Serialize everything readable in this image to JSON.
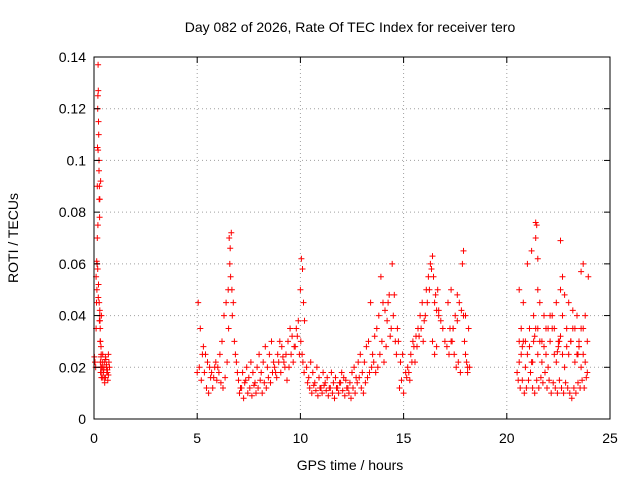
{
  "chart_data": {
    "type": "scatter",
    "title": "Day 082 of 2026, Rate Of TEC Index for receiver tero",
    "xlabel": "GPS time / hours",
    "ylabel": "ROTI / TECUs",
    "xlim": [
      0,
      25
    ],
    "ylim": [
      0,
      0.14
    ],
    "xticks": [
      0,
      5,
      10,
      15,
      20,
      25
    ],
    "yticks": [
      0,
      0.02,
      0.04,
      0.06,
      0.08,
      0.1,
      0.12,
      0.14
    ],
    "ytick_labels": [
      "0",
      "0.02",
      "0.04",
      "0.06",
      "0.08",
      "0.1",
      "0.12",
      "0.14"
    ],
    "grid": true,
    "marker": "+",
    "color": "#ff0000",
    "series": [
      {
        "x": [
          0.02,
          0.05,
          0.08,
          0.1,
          0.12,
          0.14,
          0.15,
          0.16,
          0.17,
          0.18,
          0.19,
          0.2,
          0.21,
          0.22,
          0.23,
          0.24,
          0.25,
          0.26,
          0.27,
          0.28,
          0.29,
          0.3,
          0.31,
          0.32,
          0.33,
          0.34,
          0.35,
          0.36,
          0.38,
          0.4,
          0.42,
          0.45,
          0.48,
          0.5,
          0.55,
          0.6,
          0.65,
          0.7,
          0.1,
          0.13,
          0.16,
          0.19,
          0.22,
          0.25,
          0.28,
          0.31,
          0.34,
          0.2,
          0.24,
          0.28,
          0.32,
          0.36,
          0.15,
          0.18,
          0.21,
          0.26,
          0.3,
          0.35,
          0.4,
          0.45,
          0.5,
          0.55,
          0.6,
          0.65,
          0.7,
          0.75,
          0.42,
          0.47,
          0.52,
          0.57,
          0.62,
          0.67,
          0.72,
          5.0,
          5.1,
          5.2,
          5.3,
          5.4,
          5.5,
          5.6,
          5.7,
          5.8,
          5.9,
          6.0,
          6.1,
          6.2,
          6.3,
          6.4,
          6.5,
          6.55,
          6.6,
          6.65,
          6.7,
          6.8,
          6.9,
          7.0,
          7.1,
          7.2,
          7.3,
          7.4,
          7.5,
          7.6,
          7.7,
          7.8,
          7.9,
          8.0,
          8.1,
          8.2,
          8.3,
          8.4,
          8.5,
          8.6,
          8.7,
          8.8,
          8.9,
          9.0,
          9.1,
          9.2,
          9.3,
          9.4,
          9.5,
          9.6,
          9.7,
          9.8,
          9.9,
          10.0,
          10.05,
          10.1,
          10.15,
          10.2,
          5.05,
          5.15,
          5.25,
          5.35,
          5.45,
          5.55,
          5.65,
          5.75,
          5.85,
          5.95,
          6.05,
          6.15,
          6.25,
          6.35,
          6.45,
          6.52,
          6.58,
          6.62,
          6.68,
          6.75,
          6.85,
          6.95,
          7.05,
          7.15,
          7.25,
          7.35,
          7.45,
          7.55,
          7.65,
          7.75,
          7.85,
          7.95,
          8.05,
          8.15,
          8.25,
          8.35,
          8.45,
          8.55,
          8.65,
          8.75,
          8.85,
          8.95,
          9.05,
          9.15,
          9.25,
          9.35,
          9.45,
          9.55,
          9.65,
          9.75,
          9.85,
          9.95,
          10.02,
          10.08,
          10.12,
          10.18,
          10.3,
          10.4,
          10.5,
          10.6,
          10.7,
          10.8,
          10.9,
          11.0,
          11.1,
          11.2,
          11.3,
          11.4,
          11.5,
          11.6,
          11.7,
          11.8,
          11.9,
          12.0,
          12.1,
          12.2,
          12.3,
          12.4,
          12.5,
          12.6,
          12.7,
          12.8,
          12.9,
          13.0,
          13.1,
          13.2,
          13.3,
          13.4,
          13.5,
          13.6,
          13.7,
          13.8,
          13.9,
          14.0,
          14.1,
          14.2,
          14.3,
          14.4,
          14.5,
          14.6,
          14.7,
          14.8,
          14.9,
          15.0,
          10.35,
          10.45,
          10.55,
          10.65,
          10.75,
          10.85,
          10.95,
          11.05,
          11.15,
          11.25,
          11.35,
          11.45,
          11.55,
          11.65,
          11.75,
          11.85,
          11.95,
          12.05,
          12.15,
          12.25,
          12.35,
          12.45,
          12.55,
          12.65,
          12.75,
          12.85,
          12.95,
          13.05,
          13.15,
          13.25,
          13.35,
          13.45,
          13.55,
          13.65,
          13.75,
          13.85,
          13.95,
          14.05,
          14.15,
          14.25,
          14.35,
          14.45,
          14.55,
          14.65,
          14.75,
          14.85,
          14.95,
          15.1,
          15.2,
          15.3,
          15.4,
          15.5,
          15.6,
          15.7,
          15.8,
          15.9,
          16.0,
          16.1,
          16.2,
          16.3,
          16.4,
          16.5,
          16.6,
          16.7,
          16.8,
          16.9,
          17.0,
          17.1,
          17.2,
          17.3,
          17.4,
          17.5,
          17.6,
          17.7,
          17.8,
          17.9,
          18.0,
          18.1,
          18.2,
          15.15,
          15.25,
          15.35,
          15.45,
          15.55,
          15.65,
          15.75,
          15.85,
          15.95,
          16.05,
          16.15,
          16.25,
          16.35,
          16.45,
          16.55,
          16.65,
          17.15,
          17.25,
          17.35,
          17.45,
          17.55,
          17.65,
          17.75,
          17.85,
          17.95,
          18.05,
          18.15,
          16.4,
          16.5,
          16.6,
          16.7,
          17.3,
          17.4,
          17.6,
          17.9,
          18.0,
          18.1,
          20.5,
          20.6,
          20.7,
          20.8,
          20.9,
          21.0,
          21.1,
          21.2,
          21.3,
          21.4,
          21.5,
          21.6,
          21.7,
          21.8,
          21.9,
          22.0,
          22.1,
          22.2,
          22.3,
          22.4,
          22.5,
          22.6,
          22.7,
          22.8,
          22.9,
          23.0,
          23.1,
          23.2,
          23.3,
          23.4,
          23.5,
          23.6,
          23.7,
          23.8,
          23.9,
          20.55,
          20.65,
          20.75,
          20.85,
          20.95,
          21.05,
          21.15,
          21.25,
          21.35,
          21.45,
          21.55,
          21.65,
          21.75,
          21.85,
          21.95,
          22.05,
          22.15,
          22.25,
          22.35,
          22.45,
          22.55,
          22.65,
          22.75,
          22.85,
          22.95,
          23.05,
          23.15,
          23.25,
          23.35,
          23.45,
          23.55,
          23.65,
          23.75,
          23.85,
          23.95,
          20.6,
          20.8,
          21.0,
          21.2,
          21.4,
          21.45,
          21.5,
          21.6,
          21.8,
          22.0,
          22.2,
          22.4,
          22.6,
          22.8,
          23.0,
          23.2,
          23.4,
          23.6,
          23.8,
          20.7,
          20.9,
          21.1,
          21.3,
          21.5,
          21.7,
          21.9,
          22.1,
          22.3,
          22.5,
          22.7,
          22.9,
          23.1,
          23.3,
          23.5,
          23.7,
          23.9,
          21.4,
          21.5,
          22.6,
          22.7,
          23.6,
          23.7,
          20.6,
          20.75,
          21.25,
          21.35,
          22.45,
          22.55,
          23.45,
          23.5
        ],
        "y": [
          0.024,
          0.022,
          0.02,
          0.035,
          0.045,
          0.05,
          0.06,
          0.09,
          0.105,
          0.12,
          0.125,
          0.137,
          0.127,
          0.115,
          0.11,
          0.1,
          0.085,
          0.09,
          0.078,
          0.04,
          0.038,
          0.035,
          0.022,
          0.018,
          0.02,
          0.024,
          0.018,
          0.016,
          0.02,
          0.022,
          0.016,
          0.018,
          0.02,
          0.022,
          0.016,
          0.02,
          0.018,
          0.025,
          0.055,
          0.061,
          0.07,
          0.075,
          0.052,
          0.045,
          0.042,
          0.03,
          0.028,
          0.104,
          0.096,
          0.085,
          0.092,
          0.04,
          0.06,
          0.058,
          0.047,
          0.038,
          0.03,
          0.025,
          0.02,
          0.018,
          0.016,
          0.024,
          0.021,
          0.019,
          0.017,
          0.02,
          0.025,
          0.019,
          0.014,
          0.023,
          0.018,
          0.015,
          0.022,
          0.018,
          0.02,
          0.015,
          0.028,
          0.025,
          0.022,
          0.02,
          0.018,
          0.016,
          0.022,
          0.02,
          0.025,
          0.03,
          0.04,
          0.045,
          0.05,
          0.07,
          0.066,
          0.072,
          0.04,
          0.03,
          0.022,
          0.015,
          0.012,
          0.018,
          0.014,
          0.02,
          0.016,
          0.022,
          0.018,
          0.014,
          0.02,
          0.025,
          0.018,
          0.022,
          0.028,
          0.02,
          0.025,
          0.03,
          0.022,
          0.018,
          0.025,
          0.03,
          0.028,
          0.022,
          0.025,
          0.03,
          0.035,
          0.032,
          0.028,
          0.035,
          0.038,
          0.05,
          0.062,
          0.058,
          0.045,
          0.038,
          0.045,
          0.035,
          0.025,
          0.018,
          0.012,
          0.01,
          0.016,
          0.012,
          0.02,
          0.015,
          0.018,
          0.014,
          0.012,
          0.016,
          0.022,
          0.035,
          0.06,
          0.055,
          0.05,
          0.045,
          0.025,
          0.018,
          0.01,
          0.012,
          0.008,
          0.015,
          0.01,
          0.012,
          0.009,
          0.013,
          0.01,
          0.012,
          0.015,
          0.01,
          0.014,
          0.012,
          0.016,
          0.014,
          0.018,
          0.02,
          0.016,
          0.022,
          0.018,
          0.024,
          0.02,
          0.015,
          0.02,
          0.025,
          0.022,
          0.028,
          0.032,
          0.025,
          0.03,
          0.025,
          0.022,
          0.018,
          0.02,
          0.016,
          0.022,
          0.018,
          0.014,
          0.02,
          0.016,
          0.012,
          0.018,
          0.014,
          0.016,
          0.012,
          0.018,
          0.014,
          0.016,
          0.012,
          0.014,
          0.018,
          0.016,
          0.015,
          0.012,
          0.014,
          0.018,
          0.02,
          0.016,
          0.022,
          0.025,
          0.018,
          0.022,
          0.028,
          0.03,
          0.045,
          0.025,
          0.032,
          0.035,
          0.04,
          0.055,
          0.045,
          0.042,
          0.038,
          0.048,
          0.035,
          0.04,
          0.03,
          0.035,
          0.012,
          0.015,
          0.01,
          0.014,
          0.012,
          0.01,
          0.013,
          0.011,
          0.009,
          0.012,
          0.01,
          0.013,
          0.011,
          0.009,
          0.012,
          0.01,
          0.008,
          0.012,
          0.01,
          0.014,
          0.011,
          0.009,
          0.012,
          0.01,
          0.008,
          0.012,
          0.01,
          0.014,
          0.016,
          0.012,
          0.01,
          0.014,
          0.016,
          0.018,
          0.02,
          0.022,
          0.018,
          0.02,
          0.025,
          0.03,
          0.022,
          0.028,
          0.045,
          0.032,
          0.06,
          0.048,
          0.025,
          0.03,
          0.022,
          0.025,
          0.018,
          0.02,
          0.015,
          0.022,
          0.028,
          0.032,
          0.035,
          0.04,
          0.045,
          0.038,
          0.05,
          0.055,
          0.06,
          0.063,
          0.045,
          0.042,
          0.04,
          0.038,
          0.035,
          0.03,
          0.028,
          0.025,
          0.03,
          0.035,
          0.04,
          0.038,
          0.045,
          0.042,
          0.04,
          0.025,
          0.02,
          0.02,
          0.016,
          0.018,
          0.025,
          0.03,
          0.022,
          0.028,
          0.032,
          0.035,
          0.03,
          0.04,
          0.045,
          0.05,
          0.058,
          0.055,
          0.048,
          0.05,
          0.045,
          0.035,
          0.03,
          0.025,
          0.02,
          0.022,
          0.018,
          0.06,
          0.03,
          0.022,
          0.035,
          0.03,
          0.025,
          0.028,
          0.042,
          0.05,
          0.035,
          0.048,
          0.065,
          0.04,
          0.018,
          0.018,
          0.022,
          0.025,
          0.03,
          0.02,
          0.025,
          0.028,
          0.022,
          0.03,
          0.035,
          0.025,
          0.03,
          0.022,
          0.028,
          0.025,
          0.02,
          0.03,
          0.035,
          0.025,
          0.022,
          0.028,
          0.032,
          0.025,
          0.02,
          0.028,
          0.025,
          0.03,
          0.035,
          0.022,
          0.025,
          0.028,
          0.02,
          0.025,
          0.022,
          0.018,
          0.015,
          0.012,
          0.015,
          0.01,
          0.012,
          0.015,
          0.018,
          0.012,
          0.01,
          0.015,
          0.012,
          0.016,
          0.014,
          0.018,
          0.012,
          0.015,
          0.01,
          0.014,
          0.012,
          0.01,
          0.015,
          0.012,
          0.01,
          0.014,
          0.012,
          0.01,
          0.008,
          0.012,
          0.01,
          0.014,
          0.012,
          0.015,
          0.012,
          0.016,
          0.055,
          0.05,
          0.045,
          0.06,
          0.065,
          0.07,
          0.075,
          0.05,
          0.045,
          0.04,
          0.035,
          0.04,
          0.045,
          0.05,
          0.048,
          0.045,
          0.042,
          0.04,
          0.035,
          0.04,
          0.035,
          0.03,
          0.035,
          0.04,
          0.035,
          0.03,
          0.035,
          0.04,
          0.035,
          0.03,
          0.04,
          0.035,
          0.03,
          0.035,
          0.03,
          0.035,
          0.03,
          0.076,
          0.062,
          0.069,
          0.055,
          0.057,
          0.06,
          0.03,
          0.028,
          0.022,
          0.032,
          0.026,
          0.03,
          0.025,
          0.028
        ]
      }
    ]
  }
}
